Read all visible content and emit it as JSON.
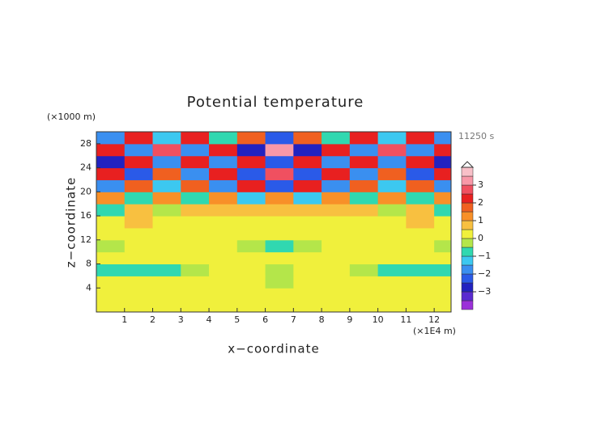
{
  "chart_data": {
    "type": "contour",
    "title": "Potential temperature",
    "y_unit_label": "(×1000 m)",
    "x_unit_label": "(×1E4 m)",
    "time_label": "11250 s",
    "xlabel": "x−coordinate",
    "ylabel": "z−coordinate",
    "xlim": [
      0,
      12.6
    ],
    "ylim": [
      0,
      30
    ],
    "xticks": [
      1,
      2,
      3,
      4,
      5,
      6,
      7,
      8,
      9,
      10,
      11,
      12
    ],
    "yticks": [
      4,
      8,
      12,
      16,
      20,
      24,
      28
    ],
    "x": [
      0.5,
      1.5,
      2.5,
      3.5,
      4.5,
      5.5,
      6.5,
      7.5,
      8.5,
      9.5,
      10.5,
      11.5,
      12.5
    ],
    "y": [
      1,
      3,
      5,
      7,
      9,
      11,
      13,
      15,
      17,
      19,
      21,
      23,
      25,
      27,
      29
    ],
    "z": [
      [
        0.3,
        0.2,
        0.3,
        0.2,
        0.3,
        0.2,
        0.3,
        0.2,
        0.3,
        0.2,
        0.3,
        0.2,
        0.3
      ],
      [
        0,
        0,
        0,
        0,
        0,
        0,
        0,
        0,
        0,
        0,
        0,
        0,
        0
      ],
      [
        0.3,
        0.3,
        0.3,
        0.3,
        0.2,
        0.1,
        -0.2,
        0.1,
        0.2,
        0.3,
        0.3,
        0.3,
        0.3
      ],
      [
        -0.6,
        -0.7,
        -0.6,
        -0.2,
        0,
        0,
        -0.1,
        0,
        0,
        -0.2,
        -0.6,
        -0.7,
        -0.6
      ],
      [
        0,
        0,
        0,
        0,
        0,
        0,
        0,
        0,
        0,
        0,
        0,
        0,
        0
      ],
      [
        -0.2,
        0,
        0.1,
        0,
        0,
        -0.3,
        -0.7,
        -0.3,
        0,
        0,
        0.1,
        0,
        -0.2
      ],
      [
        0.2,
        0.3,
        0.2,
        0.1,
        0,
        0,
        0,
        0,
        0,
        0.1,
        0.2,
        0.3,
        0.2
      ],
      [
        0.4,
        0.6,
        0.3,
        0.4,
        0.3,
        0.2,
        0.3,
        0.2,
        0.3,
        0.4,
        0.3,
        0.6,
        0.4
      ],
      [
        -0.6,
        0.8,
        -0.5,
        0.7,
        0.6,
        0.6,
        0.7,
        0.6,
        0.6,
        0.7,
        -0.5,
        0.8,
        -0.6
      ],
      [
        1.2,
        -1.0,
        1.3,
        -0.8,
        1.0,
        -1.2,
        1.1,
        -1.2,
        1.0,
        -0.8,
        1.3,
        -1.0,
        1.2
      ],
      [
        -1.8,
        1.6,
        -1.5,
        1.8,
        -1.6,
        2.0,
        -2.2,
        2.0,
        -1.6,
        1.8,
        -1.5,
        1.6,
        -1.8
      ],
      [
        2.0,
        -2.2,
        1.8,
        -1.6,
        2.2,
        -2.4,
        2.6,
        -2.4,
        2.2,
        -1.6,
        1.8,
        -2.2,
        2.0
      ],
      [
        -2.6,
        2.4,
        -2.0,
        2.4,
        -2.0,
        2.2,
        -2.4,
        2.2,
        -2.0,
        2.4,
        -2.0,
        2.4,
        -2.6
      ],
      [
        2.2,
        -1.8,
        2.6,
        -2.0,
        2.4,
        -2.8,
        3.0,
        -2.8,
        2.4,
        -2.0,
        2.6,
        -1.8,
        2.2
      ],
      [
        -1.6,
        2.0,
        -1.2,
        2.0,
        -1.0,
        1.8,
        -2.4,
        1.8,
        -1.0,
        2.0,
        -1.2,
        2.0,
        -1.6
      ]
    ],
    "colorbar": {
      "levels": [
        -4,
        -3.5,
        -3,
        -2.5,
        -2,
        -1.5,
        -1,
        -0.5,
        0,
        0.5,
        1,
        1.5,
        2,
        2.5,
        3,
        3.5,
        4
      ],
      "colors": [
        "#9b30d9",
        "#5a2ad0",
        "#2222c0",
        "#2a5ae8",
        "#3a8ff0",
        "#3cc8f0",
        "#30d8b0",
        "#b4e64a",
        "#f0f03c",
        "#f8c040",
        "#f89028",
        "#f06020",
        "#e82020",
        "#f05060",
        "#f898a8",
        "#f8c0c8"
      ],
      "ticks": [
        {
          "value": -3,
          "label": "−3"
        },
        {
          "value": -2,
          "label": "−2"
        },
        {
          "value": -1,
          "label": "−1"
        },
        0,
        1,
        2,
        3
      ]
    }
  }
}
